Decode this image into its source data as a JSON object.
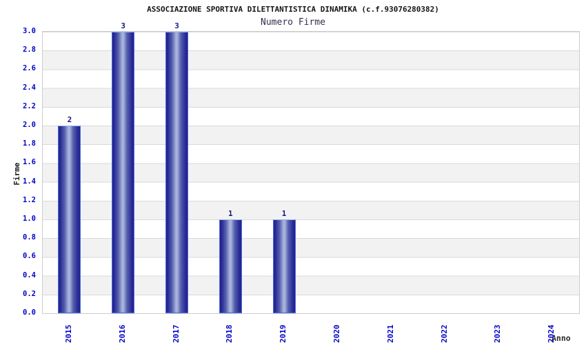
{
  "header": {
    "title": "ASSOCIAZIONE SPORTIVA DILETTANTISTICA DINAMIKA (c.f.93076280382)",
    "subtitle": "Numero Firme"
  },
  "chart_data": {
    "type": "bar",
    "title": "ASSOCIAZIONE SPORTIVA DILETTANTISTICA DINAMIKA (c.f.93076280382)",
    "subtitle": "Numero Firme",
    "categories": [
      "2015",
      "2016",
      "2017",
      "2018",
      "2019",
      "2020",
      "2021",
      "2022",
      "2023",
      "2024"
    ],
    "values": [
      2,
      3,
      3,
      1,
      1,
      0,
      0,
      0,
      0,
      0
    ],
    "bar_value_labels": [
      "2",
      "3",
      "3",
      "1",
      "1",
      "",
      "",
      "",
      "",
      ""
    ],
    "xlabel": "Anno",
    "ylabel": "Firme",
    "ylim": [
      0,
      3
    ],
    "ytick_step": 0.2,
    "yticks": [
      "0.0",
      "0.2",
      "0.4",
      "0.6",
      "0.8",
      "1.0",
      "1.2",
      "1.4",
      "1.6",
      "1.8",
      "2.0",
      "2.2",
      "2.4",
      "2.6",
      "2.8",
      "3.0"
    ],
    "grid": "horizontal, alternating white/gray bands",
    "legend": "none",
    "colors": {
      "tick_label": "#0404c8",
      "bar_value_label": "#16167e",
      "bar_dark": "#22228a",
      "bar_highlight": "#a9b2dc",
      "bar_border": "#4a6ce0",
      "band_gray": "#f2f2f2",
      "gridline": "#d9d9d9",
      "plot_border": "#cccccc",
      "title_text": "#151515",
      "subtitle_text": "#30304e"
    }
  }
}
